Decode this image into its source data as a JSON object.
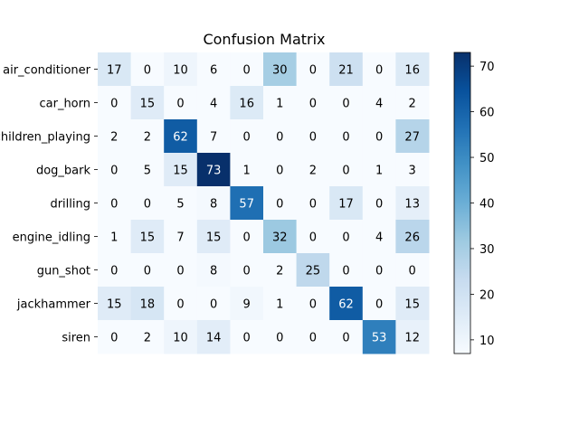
{
  "chart_data": {
    "type": "heatmap",
    "title": "Confusion Matrix",
    "row_labels": [
      "air_conditioner",
      "car_horn",
      "children_playing",
      "dog_bark",
      "drilling",
      "engine_idling",
      "gun_shot",
      "jackhammer",
      "siren"
    ],
    "values": [
      [
        17,
        0,
        10,
        6,
        0,
        30,
        0,
        21,
        0,
        16
      ],
      [
        0,
        15,
        0,
        4,
        16,
        1,
        0,
        0,
        4,
        2
      ],
      [
        2,
        2,
        62,
        7,
        0,
        0,
        0,
        0,
        0,
        27
      ],
      [
        0,
        5,
        15,
        73,
        1,
        0,
        2,
        0,
        1,
        3
      ],
      [
        0,
        0,
        5,
        8,
        57,
        0,
        0,
        17,
        0,
        13
      ],
      [
        1,
        15,
        7,
        15,
        0,
        32,
        0,
        0,
        4,
        26
      ],
      [
        0,
        0,
        0,
        8,
        0,
        2,
        25,
        0,
        0,
        0
      ],
      [
        15,
        18,
        0,
        0,
        9,
        1,
        0,
        62,
        0,
        15
      ],
      [
        0,
        2,
        10,
        14,
        0,
        0,
        0,
        0,
        53,
        12
      ]
    ],
    "colormap": "Blues",
    "colorbar": {
      "ticks": [
        10,
        20,
        30,
        40,
        50,
        60,
        70
      ],
      "range": [
        7,
        73
      ]
    }
  }
}
